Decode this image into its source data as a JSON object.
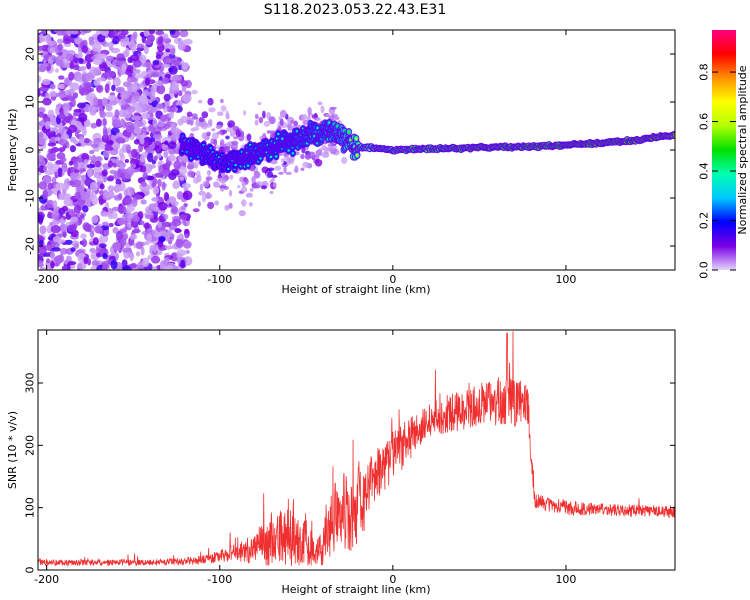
{
  "title": "S118.2023.053.22.43.E31",
  "chart_data": [
    {
      "type": "heatmap",
      "xlabel": "Height of straight line (km)",
      "ylabel": "Frequency (Hz)",
      "xlim": [
        -205,
        163
      ],
      "ylim": [
        -25,
        25
      ],
      "xticks": [
        -200,
        -100,
        0,
        100
      ],
      "yticks": [
        -20,
        -10,
        0,
        10,
        20
      ],
      "colorbar": {
        "label": "Normalized spectral amplitude",
        "range": [
          0,
          0.97
        ],
        "ticks": [
          "0.0",
          "0.2",
          "0.4",
          "0.6",
          "0.8"
        ]
      },
      "ridge": [
        {
          "x": -120,
          "y": 1.0,
          "amplitude": 0.3
        },
        {
          "x": -100,
          "y": -2.5,
          "amplitude": 0.35
        },
        {
          "x": -80,
          "y": -1.0,
          "amplitude": 0.4
        },
        {
          "x": -60,
          "y": 1.5,
          "amplitude": 0.4
        },
        {
          "x": -40,
          "y": 4.0,
          "amplitude": 0.45
        },
        {
          "x": -30,
          "y": 3.0,
          "amplitude": 0.5
        },
        {
          "x": -20,
          "y": 0.5,
          "amplitude": 0.7
        },
        {
          "x": -10,
          "y": 0.5,
          "amplitude": 0.75
        },
        {
          "x": 0,
          "y": 0.0,
          "amplitude": 0.8
        },
        {
          "x": 20,
          "y": 0.2,
          "amplitude": 0.82
        },
        {
          "x": 50,
          "y": 0.5,
          "amplitude": 0.88
        },
        {
          "x": 80,
          "y": 0.7,
          "amplitude": 0.88
        },
        {
          "x": 100,
          "y": 1.0,
          "amplitude": 0.9
        },
        {
          "x": 120,
          "y": 1.5,
          "amplitude": 0.92
        },
        {
          "x": 140,
          "y": 2.0,
          "amplitude": 0.93
        },
        {
          "x": 160,
          "y": 3.0,
          "amplitude": 0.95
        }
      ]
    },
    {
      "type": "line",
      "xlabel": "Height of straight line (km)",
      "ylabel": "SNR (10 * v/v)",
      "xlim": [
        -205,
        163
      ],
      "ylim": [
        0,
        385
      ],
      "xticks": [
        -200,
        -100,
        0,
        100
      ],
      "yticks": [
        0,
        100,
        200,
        300
      ],
      "color": "#f03030",
      "envelope": {
        "x": [
          -205,
          -170,
          -140,
          -120,
          -110,
          -100,
          -90,
          -80,
          -70,
          -60,
          -50,
          -45,
          -40,
          -35,
          -30,
          -25,
          -20,
          -15,
          -10,
          -5,
          0,
          10,
          20,
          30,
          40,
          50,
          60,
          70,
          78,
          80,
          82,
          90,
          100,
          120,
          140,
          163
        ],
        "y": [
          12,
          12,
          12,
          14,
          16,
          22,
          28,
          35,
          45,
          55,
          48,
          25,
          40,
          80,
          120,
          70,
          105,
          120,
          150,
          165,
          185,
          210,
          235,
          250,
          255,
          265,
          270,
          270,
          265,
          175,
          112,
          105,
          100,
          97,
          95,
          93
        ],
        "noise": [
          5,
          5,
          5,
          6,
          7,
          10,
          15,
          25,
          40,
          50,
          45,
          15,
          35,
          60,
          75,
          55,
          60,
          50,
          45,
          40,
          40,
          35,
          30,
          30,
          32,
          35,
          40,
          40,
          35,
          10,
          12,
          12,
          12,
          10,
          10,
          10
        ]
      },
      "peak": {
        "x": 66,
        "y": 380
      }
    }
  ]
}
